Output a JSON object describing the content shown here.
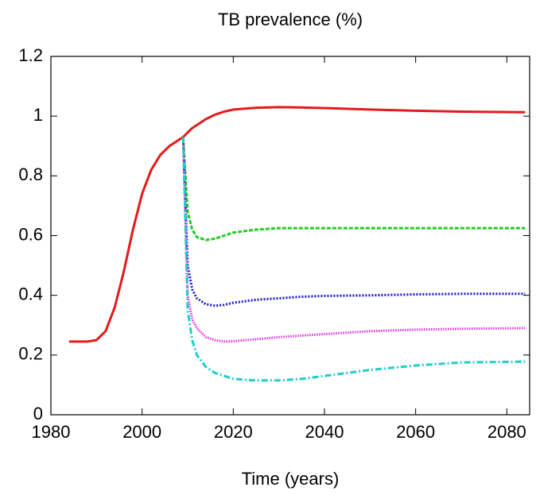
{
  "chart_data": {
    "type": "line",
    "title": "TB prevalence (%)",
    "xlabel": "Time (years)",
    "x": [
      1984,
      1988,
      1990,
      1992,
      1994,
      1996,
      1998,
      2000,
      2002,
      2004,
      2006,
      2008,
      2009,
      2010,
      2011,
      2012,
      2014,
      2016,
      2018,
      2020,
      2025,
      2030,
      2035,
      2040,
      2050,
      2060,
      2070,
      2084
    ],
    "series": [
      {
        "color": "#e41a1c",
        "dash": "none",
        "values": [
          0.245,
          0.245,
          0.25,
          0.28,
          0.36,
          0.48,
          0.62,
          0.74,
          0.82,
          0.87,
          0.9,
          0.92,
          0.93,
          0.945,
          0.96,
          0.97,
          0.99,
          1.005,
          1.015,
          1.022,
          1.028,
          1.03,
          1.029,
          1.027,
          1.022,
          1.018,
          1.015,
          1.013
        ]
      },
      {
        "color": "#22cc22",
        "dash": "5 2",
        "values": [
          null,
          null,
          null,
          null,
          null,
          null,
          null,
          null,
          null,
          null,
          null,
          null,
          0.93,
          0.68,
          0.62,
          0.595,
          0.585,
          0.59,
          0.6,
          0.61,
          0.62,
          0.625,
          0.625,
          0.625,
          0.625,
          0.625,
          0.625,
          0.625
        ]
      },
      {
        "color": "#1a1acc",
        "dash": "2 2",
        "values": [
          null,
          null,
          null,
          null,
          null,
          null,
          null,
          null,
          null,
          null,
          null,
          null,
          0.93,
          0.5,
          0.42,
          0.39,
          0.37,
          0.365,
          0.368,
          0.375,
          0.385,
          0.39,
          0.395,
          0.398,
          0.4,
          0.403,
          0.405,
          0.405
        ]
      },
      {
        "color": "#dd33dd",
        "dash": "1.5 1.5",
        "values": [
          null,
          null,
          null,
          null,
          null,
          null,
          null,
          null,
          null,
          null,
          null,
          null,
          0.93,
          0.4,
          0.32,
          0.29,
          0.26,
          0.25,
          0.245,
          0.246,
          0.253,
          0.26,
          0.265,
          0.27,
          0.28,
          0.285,
          0.288,
          0.29
        ]
      },
      {
        "color": "#22cccc",
        "dash": "8 3 2 3",
        "values": [
          null,
          null,
          null,
          null,
          null,
          null,
          null,
          null,
          null,
          null,
          null,
          null,
          0.93,
          0.35,
          0.25,
          0.2,
          0.16,
          0.14,
          0.13,
          0.12,
          0.115,
          0.115,
          0.12,
          0.13,
          0.15,
          0.165,
          0.175,
          0.178
        ]
      }
    ],
    "xlim": [
      1980,
      2085
    ],
    "xticks": [
      1980,
      2000,
      2020,
      2040,
      2060,
      2080
    ],
    "ylim": [
      0,
      1.2
    ],
    "yticks": [
      0,
      0.2,
      0.4,
      0.6,
      0.8,
      1,
      1.2
    ]
  }
}
